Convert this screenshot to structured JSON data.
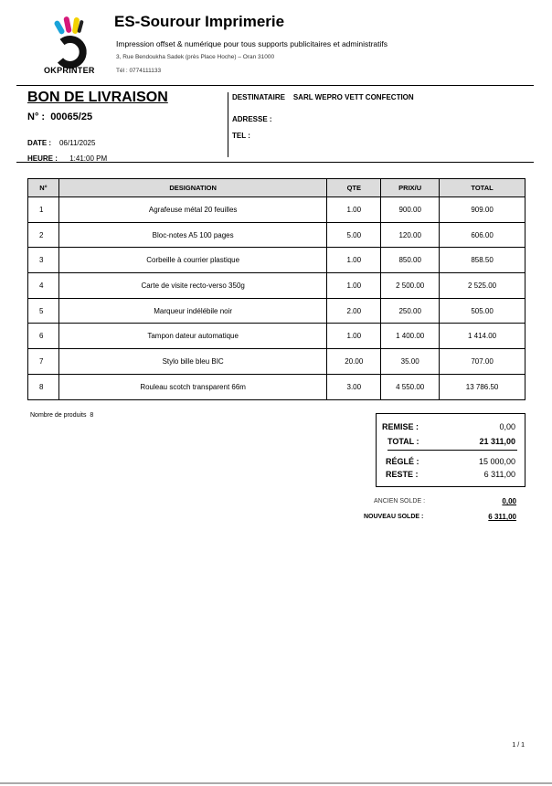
{
  "company": {
    "name": "ES-Sourour Imprimerie",
    "tagline": "Impression offset & numérique pour tous supports publicitaires et administratifs",
    "address": "3, Rue Bendoukha Sadek (près Place Hoche) – Oran 31000",
    "phone": "Tél : 0774111133",
    "logo_text": "OKPRINTER"
  },
  "document": {
    "title": "BON DE LIVRAISON",
    "number_label": "N° :",
    "number": "00065/25",
    "date_label": "DATE :",
    "date": "06/11/2025",
    "time_label": "HEURE :",
    "time": "1:41:00 PM"
  },
  "recipient": {
    "label": "DESTINATAIRE",
    "name": "SARL WEPRO VETT CONFECTION",
    "address_label": "ADRESSE :",
    "tel_label": "TEL :"
  },
  "table": {
    "headers": [
      "N°",
      "DESIGNATION",
      "QTE",
      "PRIX/U",
      "TOTAL"
    ],
    "rows": [
      [
        "1",
        "Agrafeuse métal 20 feuilles",
        "1.00",
        "900.00",
        "909.00"
      ],
      [
        "2",
        "Bloc-notes A5 100 pages",
        "5.00",
        "120.00",
        "606.00"
      ],
      [
        "3",
        "Corbeille à courrier plastique",
        "1.00",
        "850.00",
        "858.50"
      ],
      [
        "4",
        "Carte de visite recto-verso 350g",
        "1.00",
        "2 500.00",
        "2 525.00"
      ],
      [
        "5",
        "Marqueur indélébile noir",
        "2.00",
        "250.00",
        "505.00"
      ],
      [
        "6",
        "Tampon dateur automatique",
        "1.00",
        "1 400.00",
        "1 414.00"
      ],
      [
        "7",
        "Stylo bille bleu BIC",
        "20.00",
        "35.00",
        "707.00"
      ],
      [
        "8",
        "Rouleau scotch transparent 66m",
        "3.00",
        "4 550.00",
        "13 786.50"
      ]
    ]
  },
  "summary": {
    "count_label": "Nombre de produits",
    "count": "8",
    "remise_label": "REMISE :",
    "remise": "0,00",
    "total_label": "TOTAL :",
    "total": "21 311,00",
    "regle_label": "RÉGLÉ :",
    "regle": "15 000,00",
    "reste_label": "RESTE :",
    "reste": "6 311,00",
    "ancien_label": "ANCIEN SOLDE :",
    "ancien": "0,00",
    "nouveau_label": "NOUVEAU SOLDE :",
    "nouveau": "6 311,00"
  },
  "page": "1 / 1"
}
